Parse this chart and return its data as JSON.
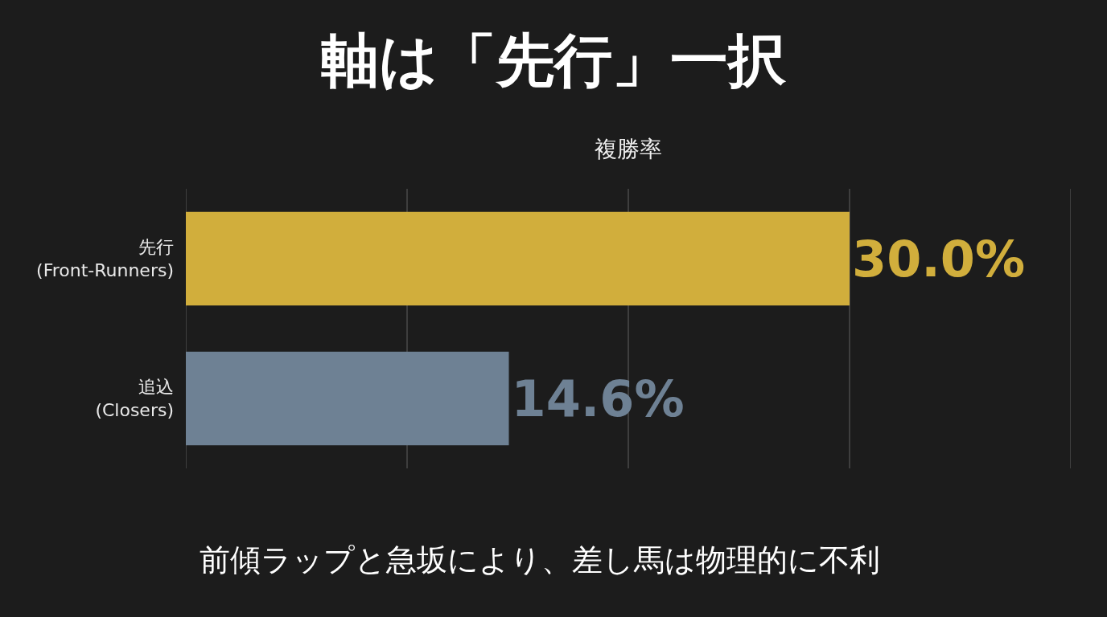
{
  "chart_data": {
    "type": "bar",
    "orientation": "horizontal",
    "title": "軸は「先行」一択",
    "subtitle": "複勝率",
    "categories": [
      "先行\n(Front-Runners)",
      "追込\n(Closers)"
    ],
    "values": [
      30.0,
      14.6
    ],
    "colors": [
      "#d1ae3c",
      "#6e8194"
    ],
    "value_labels": [
      "30.0%",
      "14.6%"
    ],
    "xlim": [
      0,
      40
    ],
    "xticks": [
      {
        "value": 0,
        "label": null
      },
      {
        "value": 10,
        "label": null
      },
      {
        "value": 20,
        "label": null
      },
      {
        "value": 30,
        "label": null
      },
      {
        "value": 40,
        "label": null
      }
    ],
    "tick_labels": "y",
    "grid": "x",
    "annotations": [
      "前傾ラップと急坂により、差し馬は物理的に不利"
    ]
  }
}
